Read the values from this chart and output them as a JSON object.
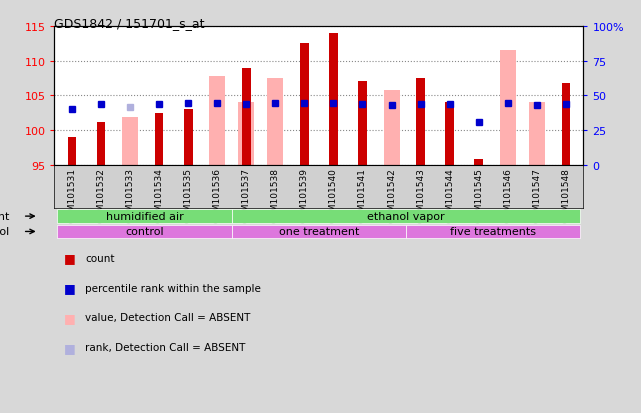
{
  "title": "GDS1842 / 151701_s_at",
  "samples": [
    "GSM101531",
    "GSM101532",
    "GSM101533",
    "GSM101534",
    "GSM101535",
    "GSM101536",
    "GSM101537",
    "GSM101538",
    "GSM101539",
    "GSM101540",
    "GSM101541",
    "GSM101542",
    "GSM101543",
    "GSM101544",
    "GSM101545",
    "GSM101546",
    "GSM101547",
    "GSM101548"
  ],
  "count_values": [
    99.0,
    101.2,
    95.0,
    102.5,
    103.0,
    95.0,
    109.0,
    95.0,
    112.5,
    114.0,
    107.0,
    95.0,
    107.5,
    104.0,
    95.8,
    95.0,
    95.0,
    106.7
  ],
  "absent_value": [
    95.0,
    95.0,
    101.8,
    95.0,
    95.0,
    107.8,
    104.0,
    107.5,
    95.0,
    95.0,
    95.0,
    105.7,
    95.0,
    95.0,
    95.0,
    111.5,
    104.0,
    95.0
  ],
  "percentile_rank": [
    40.0,
    43.5,
    41.5,
    43.5,
    44.5,
    44.5,
    44.0,
    44.5,
    44.5,
    44.5,
    43.5,
    43.0,
    43.5,
    43.5,
    31.0,
    44.5,
    43.0,
    43.5
  ],
  "rank_absent_samples": [
    2
  ],
  "absent_rank_val": 41.5,
  "count_is_absent": [
    false,
    false,
    true,
    false,
    false,
    true,
    false,
    true,
    false,
    false,
    false,
    true,
    false,
    false,
    false,
    true,
    false,
    false
  ],
  "ylim_left": [
    95,
    115
  ],
  "ylim_right": [
    0,
    100
  ],
  "yticks_left": [
    95,
    100,
    105,
    110,
    115
  ],
  "yticks_right": [
    0,
    25,
    50,
    75,
    100
  ],
  "ytick_labels_right": [
    "0",
    "25",
    "50",
    "75",
    "100%"
  ],
  "bar_baseline": 95,
  "color_count": "#cc0000",
  "color_absent_value": "#ffb0b0",
  "color_percentile": "#0000cc",
  "color_absent_rank": "#b0b0dd",
  "background_color": "#d8d8d8",
  "plot_bg_color": "#ffffff",
  "label_bg_color": "#d0d0d0",
  "agent_color": "#77dd77",
  "protocol_color": "#dd77dd"
}
